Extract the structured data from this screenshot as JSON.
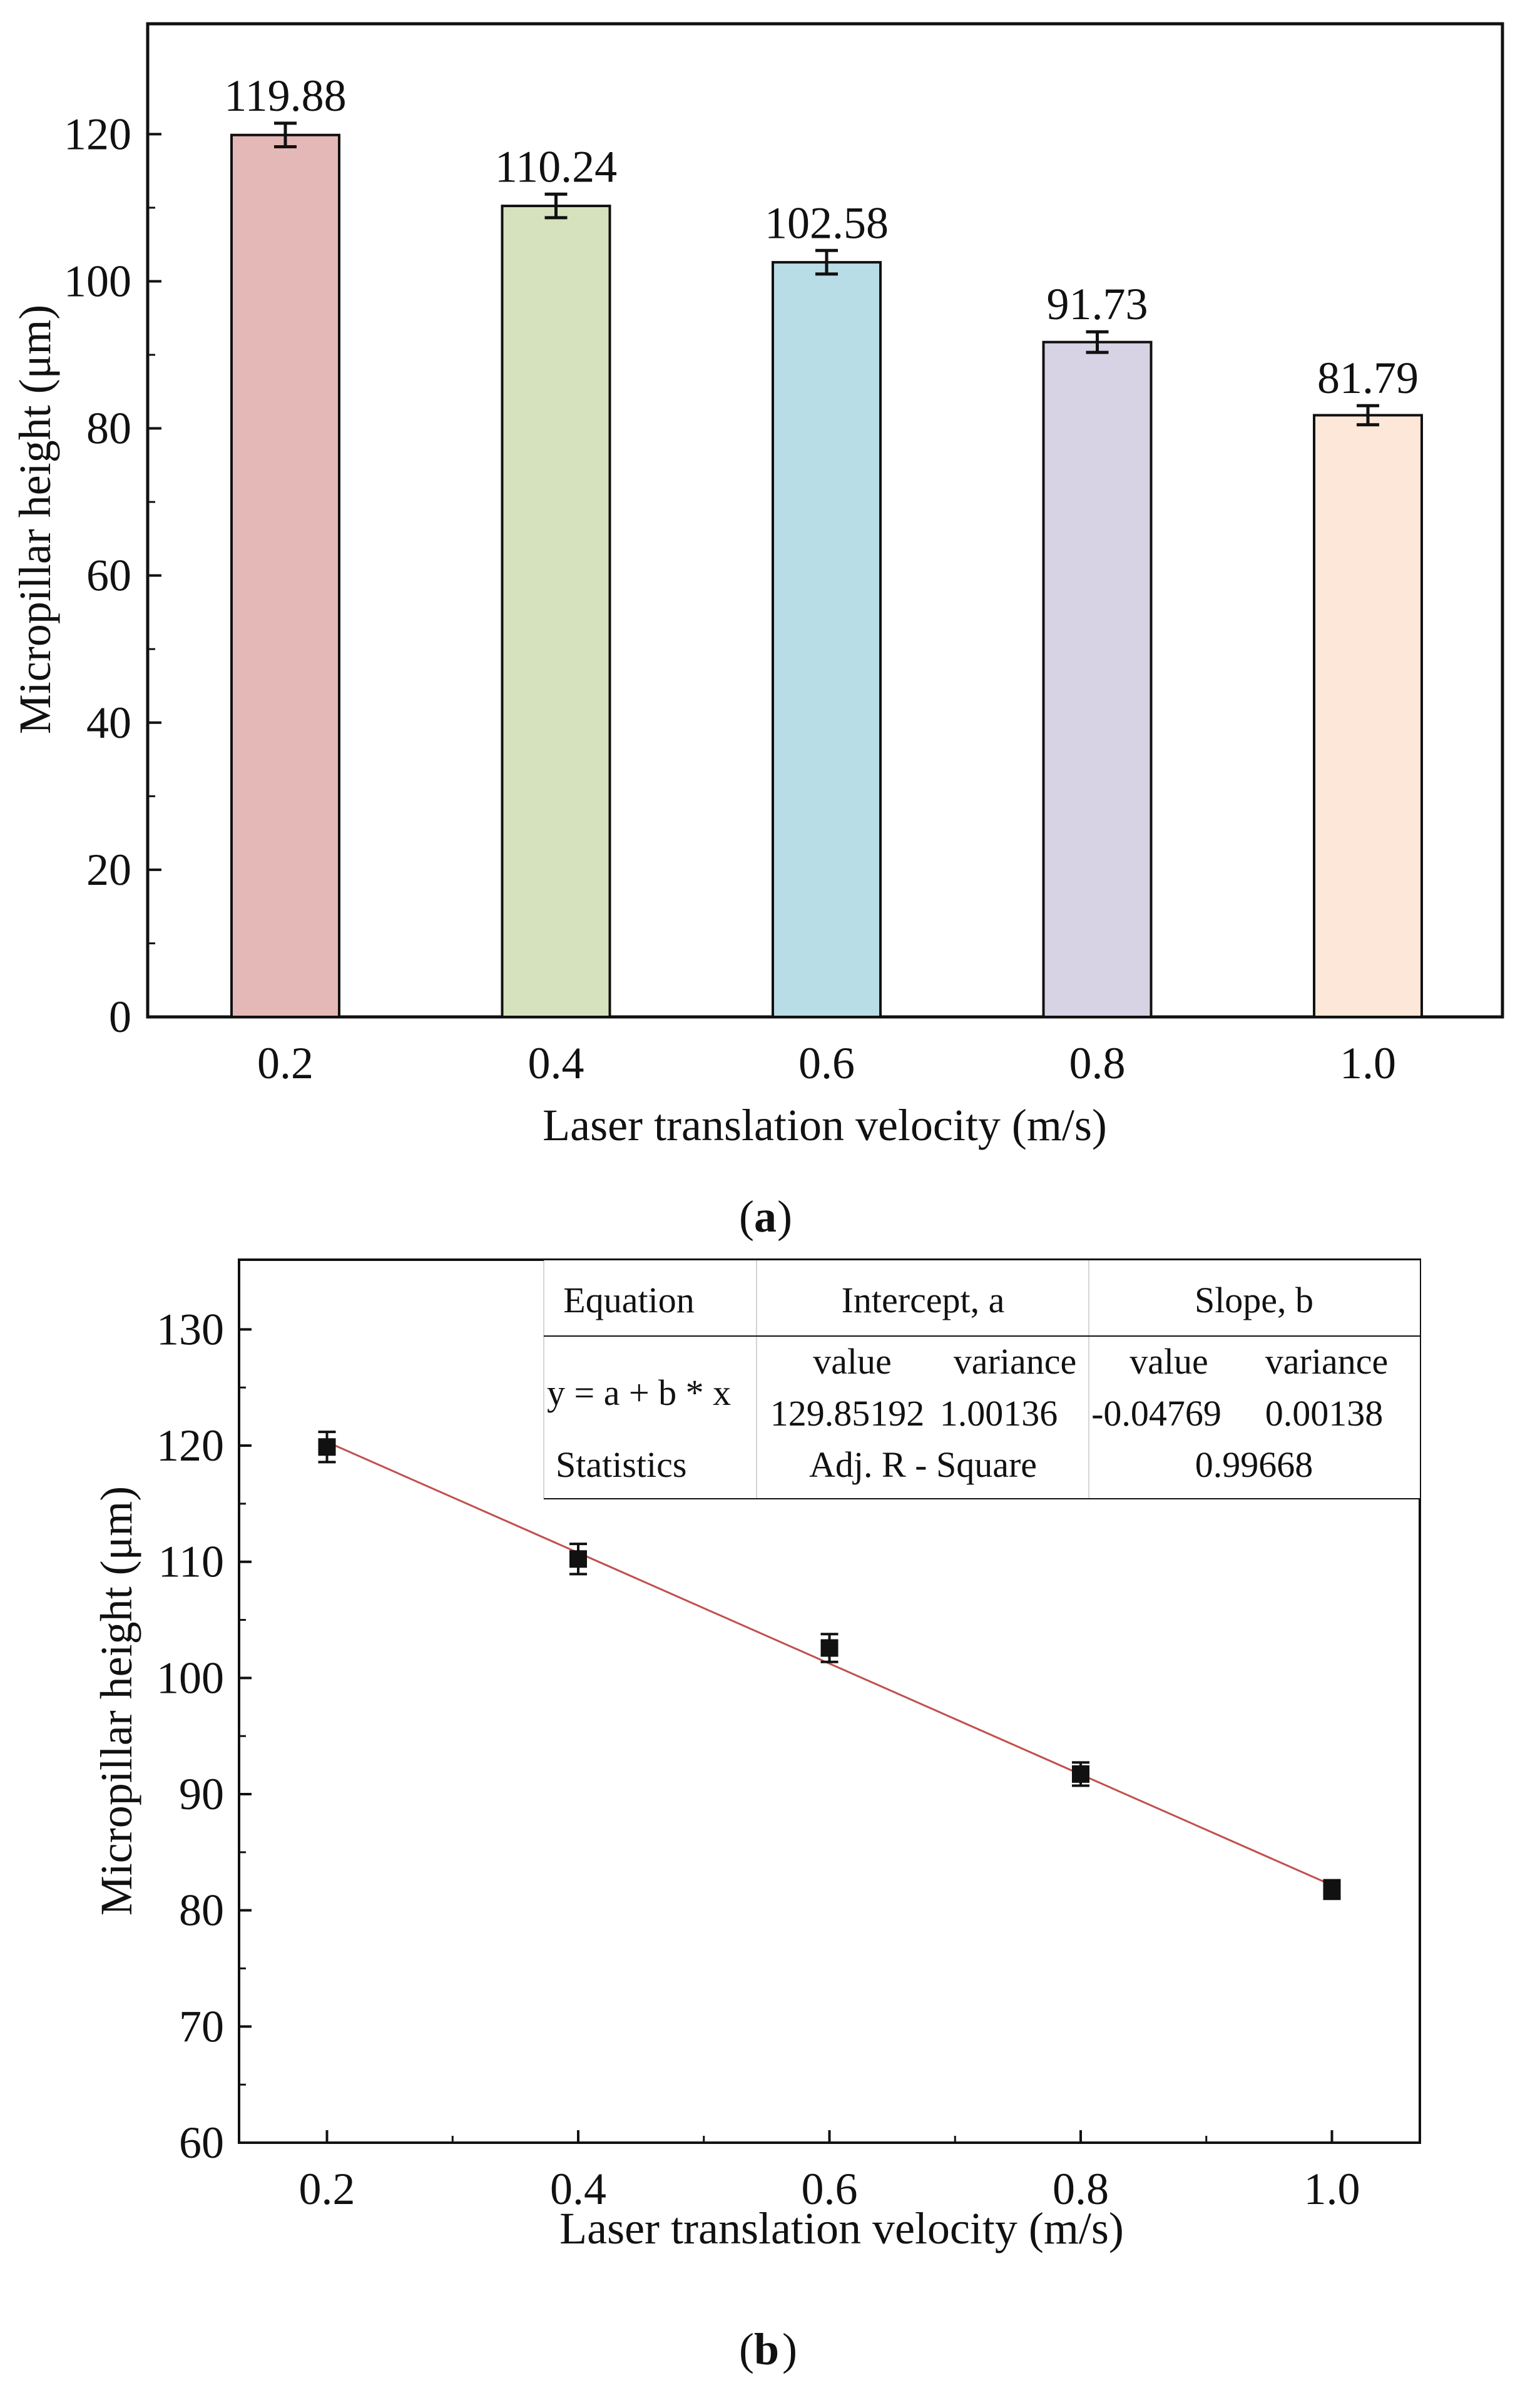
{
  "chart_data": [
    {
      "panel": "a",
      "type": "bar",
      "categories": [
        "0.2",
        "0.4",
        "0.6",
        "0.8",
        "1.0"
      ],
      "values": [
        119.88,
        110.24,
        102.58,
        91.73,
        81.79
      ],
      "error": [
        1.6,
        1.6,
        1.6,
        1.4,
        1.3
      ],
      "labels": [
        "119.88",
        "110.24",
        "102.58",
        "91.73",
        "81.79"
      ],
      "colors": [
        "#e4b8b6",
        "#d6e2bd",
        "#b8dde6",
        "#d7d3e4",
        "#fde7d8"
      ],
      "xlabel": "Laser translation velocity (m/s)",
      "ylabel": "Micropillar height (μm)",
      "ylim": [
        0,
        135
      ],
      "yticks": [
        "0",
        "20",
        "40",
        "60",
        "80",
        "100",
        "120"
      ],
      "caption": "a"
    },
    {
      "panel": "b",
      "type": "scatter",
      "x": [
        0.2,
        0.4,
        0.6,
        0.8,
        1.0
      ],
      "values": [
        119.88,
        110.24,
        102.58,
        91.73,
        81.79
      ],
      "error": [
        1.3,
        1.3,
        1.2,
        1.0,
        0.8
      ],
      "fit": {
        "intercept": 129.85192,
        "slope_per_unit": -47.69,
        "color": "#c0504d"
      },
      "xticks": [
        "0.2",
        "0.4",
        "0.6",
        "0.8",
        "1.0"
      ],
      "xlim": [
        0.13,
        1.07
      ],
      "yticks": [
        "60",
        "70",
        "80",
        "90",
        "100",
        "110",
        "120",
        "130"
      ],
      "ylim": [
        60,
        136
      ],
      "xlabel": "Laser translation velocity (m/s)",
      "ylabel": "Micropillar height (μm)",
      "caption": "b",
      "table": {
        "col_headers": [
          "Equation",
          "Intercept, a",
          "Slope, b"
        ],
        "row_equation": "y = a + b * x",
        "row_statistics": "Statistics",
        "sub_headers": [
          "value",
          "variance",
          "value",
          "variance"
        ],
        "values": [
          "129.85192",
          "1.00136",
          "-0.04769",
          "0.00138"
        ],
        "adj_label": "Adj. R - Square",
        "adj_value": "0.99668"
      }
    }
  ]
}
